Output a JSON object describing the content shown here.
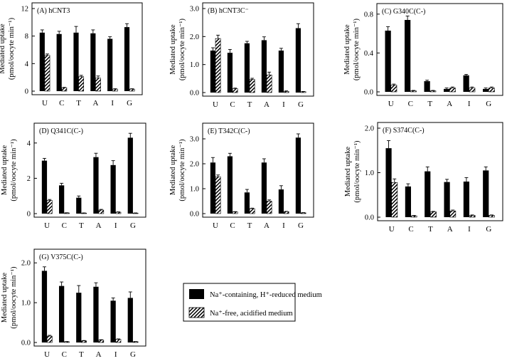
{
  "figure": {
    "y_axis_label_line1": "Mediated uptake",
    "y_axis_label_line2": "(pmol/oocyte min⁻¹)",
    "legend": [
      {
        "label": "Na⁺-containing, H⁺-reduced medium",
        "fill": "solid-black"
      },
      {
        "label": "Na⁺-free, acidified medium",
        "fill": "diagonal-hatch"
      }
    ],
    "colors": {
      "bar_solid": "#000000",
      "hatch": "#000000",
      "background": "#ffffff"
    }
  },
  "chart_data": [
    {
      "type": "bar",
      "title": "(A) hCNT3",
      "categories": [
        "U",
        "C",
        "T",
        "A",
        "I",
        "G"
      ],
      "yticks": [
        "0",
        "4",
        "8",
        "12"
      ],
      "ylim": [
        0,
        12
      ],
      "series": [
        {
          "name": "Na⁺-containing, H⁺-reduced medium",
          "values": [
            8.5,
            8.3,
            8.5,
            8.4,
            7.6,
            9.3
          ],
          "errors": [
            0.4,
            0.4,
            0.9,
            0.5,
            0.3,
            0.5
          ]
        },
        {
          "name": "Na⁺-free, acidified medium",
          "values": [
            5.2,
            0.5,
            2.1,
            1.9,
            0.3,
            0.3
          ],
          "errors": [
            0.2,
            0.05,
            0.2,
            0.3,
            0.05,
            0.05
          ]
        }
      ]
    },
    {
      "type": "bar",
      "title": "(B) hCNT3C⁻",
      "categories": [
        "U",
        "C",
        "T",
        "A",
        "I",
        "G"
      ],
      "yticks": [
        "0.0",
        "1.0",
        "2.0",
        "3.0"
      ],
      "ylim": [
        0,
        3
      ],
      "series": [
        {
          "name": "Na⁺-containing, H⁺-reduced medium",
          "values": [
            1.5,
            1.42,
            1.76,
            1.87,
            1.5,
            2.3
          ],
          "errors": [
            0.1,
            0.12,
            0.07,
            0.12,
            0.08,
            0.16
          ]
        },
        {
          "name": "Na⁺-free, acidified medium",
          "values": [
            1.93,
            0.14,
            0.47,
            0.63,
            0.04,
            0.03
          ],
          "errors": [
            0.12,
            0.02,
            0.04,
            0.1,
            0.02,
            0.01
          ]
        }
      ]
    },
    {
      "type": "bar",
      "title": "(C) G340C(C-)",
      "categories": [
        "U",
        "C",
        "T",
        "A",
        "I",
        "G"
      ],
      "yticks": [
        "0.0",
        "0.4",
        "0.8"
      ],
      "ylim": [
        0,
        0.85
      ],
      "series": [
        {
          "name": "Na⁺-containing, H⁺-reduced medium",
          "values": [
            0.63,
            0.74,
            0.11,
            0.03,
            0.17,
            0.03
          ],
          "errors": [
            0.04,
            0.04,
            0.01,
            0.01,
            0.01,
            0.01
          ]
        },
        {
          "name": "Na⁺-free, acidified medium",
          "values": [
            0.07,
            0.01,
            0.01,
            0.04,
            0.04,
            0.04
          ],
          "errors": [
            0.01,
            0.005,
            0.005,
            0.01,
            0.01,
            0.01
          ]
        }
      ]
    },
    {
      "type": "bar",
      "title": "(D) Q341C(C-)",
      "categories": [
        "U",
        "C",
        "T",
        "A",
        "I",
        "G"
      ],
      "yticks": [
        "0",
        "2",
        "4"
      ],
      "ylim": [
        0,
        4.8
      ],
      "series": [
        {
          "name": "Na⁺-containing, H⁺-reduced medium",
          "values": [
            3.0,
            1.6,
            0.9,
            3.2,
            2.75,
            4.3
          ],
          "errors": [
            0.13,
            0.12,
            0.1,
            0.22,
            0.25,
            0.25
          ]
        },
        {
          "name": "Na⁺-free, acidified medium",
          "values": [
            0.75,
            0.04,
            0.03,
            0.2,
            0.08,
            0.03
          ],
          "errors": [
            0.05,
            0.01,
            0.01,
            0.04,
            0.02,
            0.01
          ]
        }
      ]
    },
    {
      "type": "bar",
      "title": "(E) T342C(C-)",
      "categories": [
        "U",
        "C",
        "T",
        "A",
        "I",
        "G"
      ],
      "yticks": [
        "0.0",
        "1.0",
        "2.0",
        "3.0"
      ],
      "ylim": [
        0,
        3.4
      ],
      "series": [
        {
          "name": "Na⁺-containing, H⁺-reduced medium",
          "values": [
            2.05,
            2.3,
            0.85,
            2.05,
            0.97,
            3.05
          ],
          "errors": [
            0.2,
            0.12,
            0.12,
            0.15,
            0.15,
            0.15
          ]
        },
        {
          "name": "Na⁺-free, acidified medium",
          "values": [
            1.48,
            0.07,
            0.2,
            0.5,
            0.08,
            0.03
          ],
          "errors": [
            0.07,
            0.01,
            0.02,
            0.05,
            0.01,
            0.01
          ]
        }
      ]
    },
    {
      "type": "bar",
      "title": "(F) S374C(C-)",
      "categories": [
        "U",
        "C",
        "T",
        "A",
        "I",
        "G"
      ],
      "yticks": [
        "0.0",
        "1.0",
        "2.0"
      ],
      "ylim": [
        0,
        2.0
      ],
      "series": [
        {
          "name": "Na⁺-containing, H⁺-reduced medium",
          "values": [
            1.55,
            0.69,
            1.03,
            0.79,
            0.8,
            1.05
          ],
          "errors": [
            0.17,
            0.06,
            0.1,
            0.06,
            0.09,
            0.08
          ]
        },
        {
          "name": "Na⁺-free, acidified medium",
          "values": [
            0.78,
            0.03,
            0.12,
            0.14,
            0.04,
            0.04
          ],
          "errors": [
            0.08,
            0.01,
            0.01,
            0.02,
            0.01,
            0.01
          ]
        }
      ]
    },
    {
      "type": "bar",
      "title": "(G) V375C(C-)",
      "categories": [
        "U",
        "C",
        "T",
        "A",
        "I",
        "G"
      ],
      "yticks": [
        "0.0",
        "1.0",
        "2.0"
      ],
      "ylim": [
        0,
        2.2
      ],
      "series": [
        {
          "name": "Na⁺-containing, H⁺-reduced medium",
          "values": [
            1.8,
            1.42,
            1.25,
            1.4,
            1.05,
            1.12
          ],
          "errors": [
            0.1,
            0.1,
            0.18,
            0.1,
            0.07,
            0.15
          ]
        },
        {
          "name": "Na⁺-free, acidified medium",
          "values": [
            0.16,
            0.02,
            0.04,
            0.06,
            0.08,
            0.02
          ],
          "errors": [
            0.02,
            0.005,
            0.01,
            0.01,
            0.01,
            0.005
          ]
        }
      ]
    }
  ]
}
